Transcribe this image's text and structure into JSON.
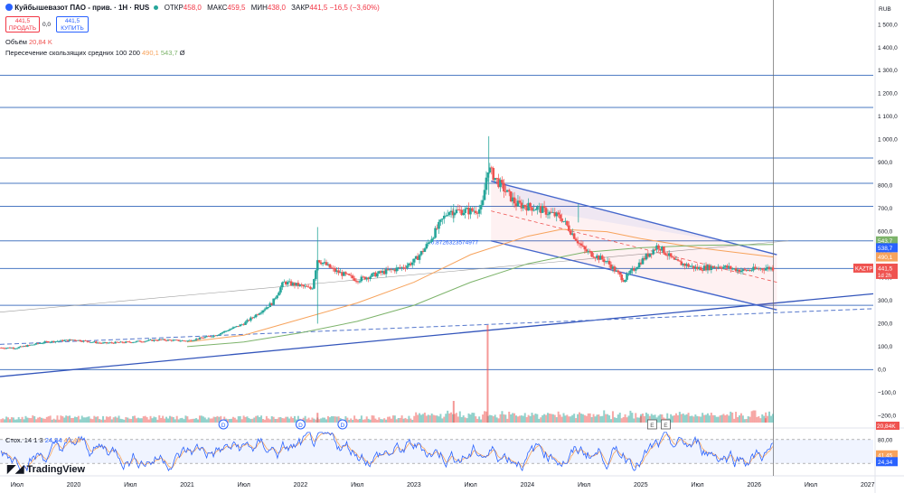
{
  "header": {
    "symbol": "Куйбышевазот ПАО - прив. · 1Н · RUS",
    "open_label": "ОТКР",
    "open": "458,0",
    "high_label": "МАКС",
    "high": "459,5",
    "low_label": "МИН",
    "low": "438,0",
    "close_label": "ЗАКР",
    "close": "441,5",
    "change": "−16,5 (−3,60%)"
  },
  "trade": {
    "sell_price": "441,5",
    "sell_label": "ПРОДАТЬ",
    "spread": "0,0",
    "buy_price": "441,5",
    "buy_label": "КУПИТЬ"
  },
  "indicators": {
    "volume_label": "Объём",
    "volume_value": "20,84 K",
    "ma_label": "Пересечение скользящих средних 100 200",
    "ma_fast": "490,1",
    "ma_slow": "543,7",
    "ma_symbol": "Ø"
  },
  "stoch": {
    "label": "Стох. 14 1 3",
    "k": "24,34",
    "d": "41,45"
  },
  "logo": "TradingView",
  "currency": "RUB",
  "colors": {
    "up": "#26a69a",
    "down": "#ef5350",
    "hline": "#4a78c2",
    "ma_fast": "#f7a35c",
    "ma_slow": "#7cb36a",
    "channel": "#4466cc",
    "stoch_k": "#2962ff",
    "stoch_d": "#f7a35c"
  },
  "chart_data": {
    "type": "candlestick",
    "x_ticks": [
      "Июл",
      "2020",
      "Июл",
      "2021",
      "Июл",
      "2022",
      "Июл",
      "2023",
      "Июл",
      "2024",
      "Июл",
      "2025",
      "Июл",
      "2026",
      "Июл",
      "2027"
    ],
    "y_ticks": [
      "1 500,0",
      "1 400,0",
      "1 300,0",
      "1 200,0",
      "1 100,0",
      "1 000,0",
      "900,0",
      "800,0",
      "700,0",
      "600,0",
      "500,0",
      "400,0",
      "300,0",
      "200,0",
      "100,0",
      "0,0",
      "−100,0",
      "−200,0"
    ],
    "ylim": [
      -230,
      1560
    ],
    "horizontal_levels": [
      1280,
      1140,
      920,
      810,
      710,
      560,
      440,
      280,
      0
    ],
    "price_path": [
      [
        2019.5,
        95
      ],
      [
        2019.75,
        120
      ],
      [
        2020.0,
        130
      ],
      [
        2020.25,
        115
      ],
      [
        2020.5,
        120
      ],
      [
        2020.75,
        130
      ],
      [
        2021.0,
        125
      ],
      [
        2021.25,
        150
      ],
      [
        2021.5,
        200
      ],
      [
        2021.75,
        290
      ],
      [
        2021.85,
        380
      ],
      [
        2022.0,
        365
      ],
      [
        2022.1,
        350
      ],
      [
        2022.15,
        480
      ],
      [
        2022.3,
        430
      ],
      [
        2022.5,
        390
      ],
      [
        2022.7,
        420
      ],
      [
        2022.9,
        445
      ],
      [
        2023.0,
        470
      ],
      [
        2023.1,
        530
      ],
      [
        2023.3,
        690
      ],
      [
        2023.5,
        690
      ],
      [
        2023.6,
        700
      ],
      [
        2023.65,
        880
      ],
      [
        2023.72,
        830
      ],
      [
        2023.9,
        720
      ],
      [
        2024.1,
        700
      ],
      [
        2024.3,
        660
      ],
      [
        2024.5,
        520
      ],
      [
        2024.7,
        470
      ],
      [
        2024.85,
        390
      ],
      [
        2025.0,
        470
      ],
      [
        2025.15,
        540
      ],
      [
        2025.3,
        470
      ],
      [
        2025.5,
        440
      ],
      [
        2025.7,
        450
      ],
      [
        2025.9,
        430
      ],
      [
        2026.1,
        441.5
      ]
    ],
    "moving_averages": [
      {
        "name": "100",
        "value": 490.1
      },
      {
        "name": "200",
        "value": 543.7
      }
    ],
    "price_labels": {
      "ma_slow": "543,7",
      "level": "538,7",
      "ma_fast": "490,1",
      "last": "441,5",
      "last_time": "1d 2h",
      "ticker": "KAZTP",
      "volume": "20,84K"
    },
    "annotation": "0.8726323574977",
    "event_markers": [
      "D",
      "D",
      "D",
      "E",
      "E"
    ],
    "volume_spikes": [
      [
        2023.65,
        180
      ],
      [
        2023.35,
        40
      ],
      [
        2022.15,
        18
      ],
      [
        2025.0,
        12
      ],
      [
        2026.1,
        8
      ]
    ],
    "stoch_levels": [
      "80,00",
      "20,00"
    ],
    "stoch_k_last": 24.34,
    "stoch_d_last": 41.45
  }
}
